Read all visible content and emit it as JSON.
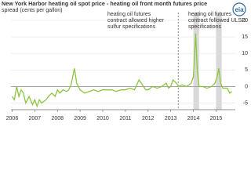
{
  "chart_data": {
    "type": "line",
    "title": "New York Harbor heating oil spot price - heating oil front month futures price",
    "subtitle": "spread (cents per gallon)",
    "logo": "eia",
    "annotations": [
      "heating oil futures contract allowed higher sulfur specifications",
      "heating oil futures contract followed ULSD specifications"
    ],
    "vline": 2013.33,
    "shaded_regions": [
      [
        2014.0,
        2014.25
      ],
      [
        2015.0,
        2015.25
      ]
    ],
    "x": [
      2006.0,
      2006.1,
      2006.2,
      2006.3,
      2006.4,
      2006.5,
      2006.6,
      2006.75,
      2006.9,
      2007.0,
      2007.1,
      2007.2,
      2007.3,
      2007.5,
      2007.6,
      2007.75,
      2007.9,
      2008.0,
      2008.1,
      2008.25,
      2008.4,
      2008.5,
      2008.6,
      2008.75,
      2008.85,
      2009.0,
      2009.2,
      2009.4,
      2009.6,
      2009.8,
      2010.0,
      2010.2,
      2010.4,
      2010.6,
      2010.8,
      2011.0,
      2011.2,
      2011.4,
      2011.6,
      2011.75,
      2011.9,
      2012.0,
      2012.2,
      2012.4,
      2012.6,
      2012.8,
      2012.9,
      2013.0,
      2013.1,
      2013.25,
      2013.35,
      2013.5,
      2013.7,
      2013.9,
      2014.0,
      2014.1,
      2014.17,
      2014.25,
      2014.4,
      2014.6,
      2014.8,
      2014.95,
      2015.05,
      2015.12,
      2015.2,
      2015.3,
      2015.5,
      2015.6,
      2015.7
    ],
    "series": [
      {
        "name": "spread",
        "color": "#8cc63f",
        "values": [
          -3,
          -4,
          0,
          -3,
          -1,
          -2,
          -5,
          -3,
          -5.5,
          -4,
          -6,
          -4,
          -5,
          -4,
          -3,
          -2,
          -3,
          -1,
          -2,
          -1,
          -1.5,
          -1,
          0.5,
          5.5,
          1,
          -1,
          -2,
          -1.5,
          -1,
          -1.5,
          -1,
          -1,
          -1,
          -1.5,
          -1,
          -1,
          -0.5,
          -1,
          2,
          0.5,
          -1,
          -1,
          0,
          -0.5,
          0,
          1,
          -0.5,
          0,
          2,
          1,
          0,
          0.5,
          0,
          1,
          3,
          16,
          5,
          0,
          0,
          -0.5,
          0,
          1,
          3,
          5.5,
          1,
          -0.5,
          -0.5,
          -2,
          -1.5
        ]
      }
    ],
    "xlim": [
      2005.95,
      2015.85
    ],
    "xticks": [
      2006,
      2007,
      2008,
      2009,
      2010,
      2011,
      2012,
      2013,
      2014,
      2015
    ],
    "ylim": [
      -7,
      20
    ],
    "yticks": [
      -5,
      0,
      5,
      10,
      15,
      20
    ],
    "grid": true
  }
}
